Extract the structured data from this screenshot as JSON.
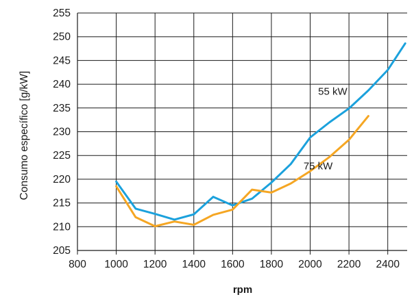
{
  "chart_data": {
    "type": "line",
    "title": "",
    "xlabel": "rpm",
    "ylabel": "Consumo específico [g/kW]",
    "xlim": [
      800,
      2500
    ],
    "ylim": [
      205,
      255
    ],
    "xticks": [
      800,
      1000,
      1200,
      1400,
      1600,
      1800,
      2000,
      2200,
      2400
    ],
    "yticks": [
      205,
      210,
      215,
      220,
      225,
      230,
      235,
      240,
      245,
      250,
      255
    ],
    "grid": "vertical and horizontal",
    "series": [
      {
        "name": "55 kW",
        "color": "#1ba1dc",
        "x": [
          1000,
          1100,
          1200,
          1300,
          1400,
          1500,
          1600,
          1700,
          1800,
          1900,
          2000,
          2100,
          2200,
          2300,
          2400,
          2490
        ],
        "y": [
          219.5,
          213.8,
          212.7,
          211.5,
          212.6,
          216.3,
          214.5,
          215.9,
          219.3,
          223.2,
          228.8,
          232.0,
          234.9,
          238.7,
          243.0,
          248.6
        ]
      },
      {
        "name": "75 kW",
        "color": "#f5a623",
        "x": [
          1000,
          1100,
          1200,
          1300,
          1400,
          1500,
          1600,
          1700,
          1800,
          1900,
          2000,
          2100,
          2200,
          2300
        ],
        "y": [
          218.5,
          212.0,
          210.1,
          211.1,
          210.4,
          212.5,
          213.6,
          217.8,
          217.2,
          219.1,
          221.7,
          224.7,
          228.3,
          233.3
        ]
      }
    ]
  }
}
